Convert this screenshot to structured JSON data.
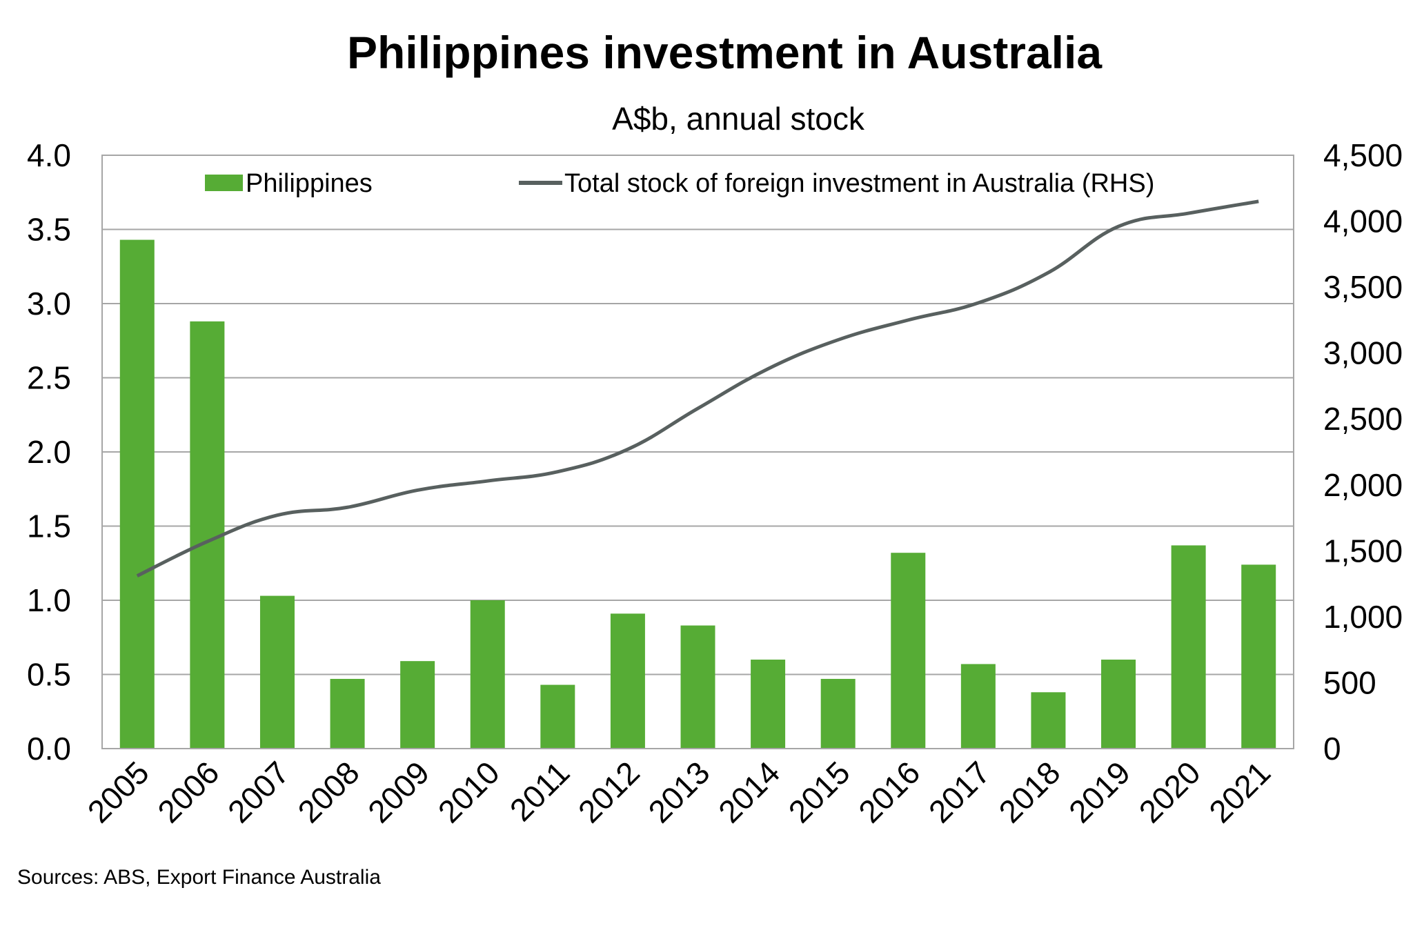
{
  "chart_data": {
    "type": "bar",
    "title": "Philippines investment in Australia",
    "subtitle": "A$b, annual stock",
    "source": "Sources: ABS, Export Finance Australia",
    "categories": [
      "2005",
      "2006",
      "2007",
      "2008",
      "2009",
      "2010",
      "2011",
      "2012",
      "2013",
      "2014",
      "2015",
      "2016",
      "2017",
      "2018",
      "2019",
      "2020",
      "2021"
    ],
    "series": [
      {
        "name": "Philippines",
        "type": "bar",
        "axis": "left",
        "color": "#56ac35",
        "values": [
          3.43,
          2.88,
          1.03,
          0.47,
          0.59,
          1.0,
          0.43,
          0.91,
          0.83,
          0.6,
          0.47,
          1.32,
          0.57,
          0.38,
          0.6,
          1.37,
          1.24
        ]
      },
      {
        "name": "Total stock of foreign investment in Australia (RHS)",
        "type": "line",
        "axis": "right",
        "color": "#58605f",
        "values": [
          1310,
          1570,
          1770,
          1830,
          1960,
          2030,
          2100,
          2270,
          2580,
          2880,
          3100,
          3250,
          3380,
          3610,
          3960,
          4060,
          4150
        ]
      }
    ],
    "y_left": {
      "min": 0,
      "max": 4.0,
      "step": 0.5,
      "tick_labels": [
        "0.0",
        "0.5",
        "1.0",
        "1.5",
        "2.0",
        "2.5",
        "3.0",
        "3.5",
        "4.0"
      ]
    },
    "y_right": {
      "min": 0,
      "max": 4500,
      "step": 500,
      "tick_labels": [
        "0",
        "500",
        "1,000",
        "1,500",
        "2,000",
        "2,500",
        "3,000",
        "3,500",
        "4,000",
        "4,500"
      ]
    },
    "grid": true,
    "legend_position": "top"
  }
}
